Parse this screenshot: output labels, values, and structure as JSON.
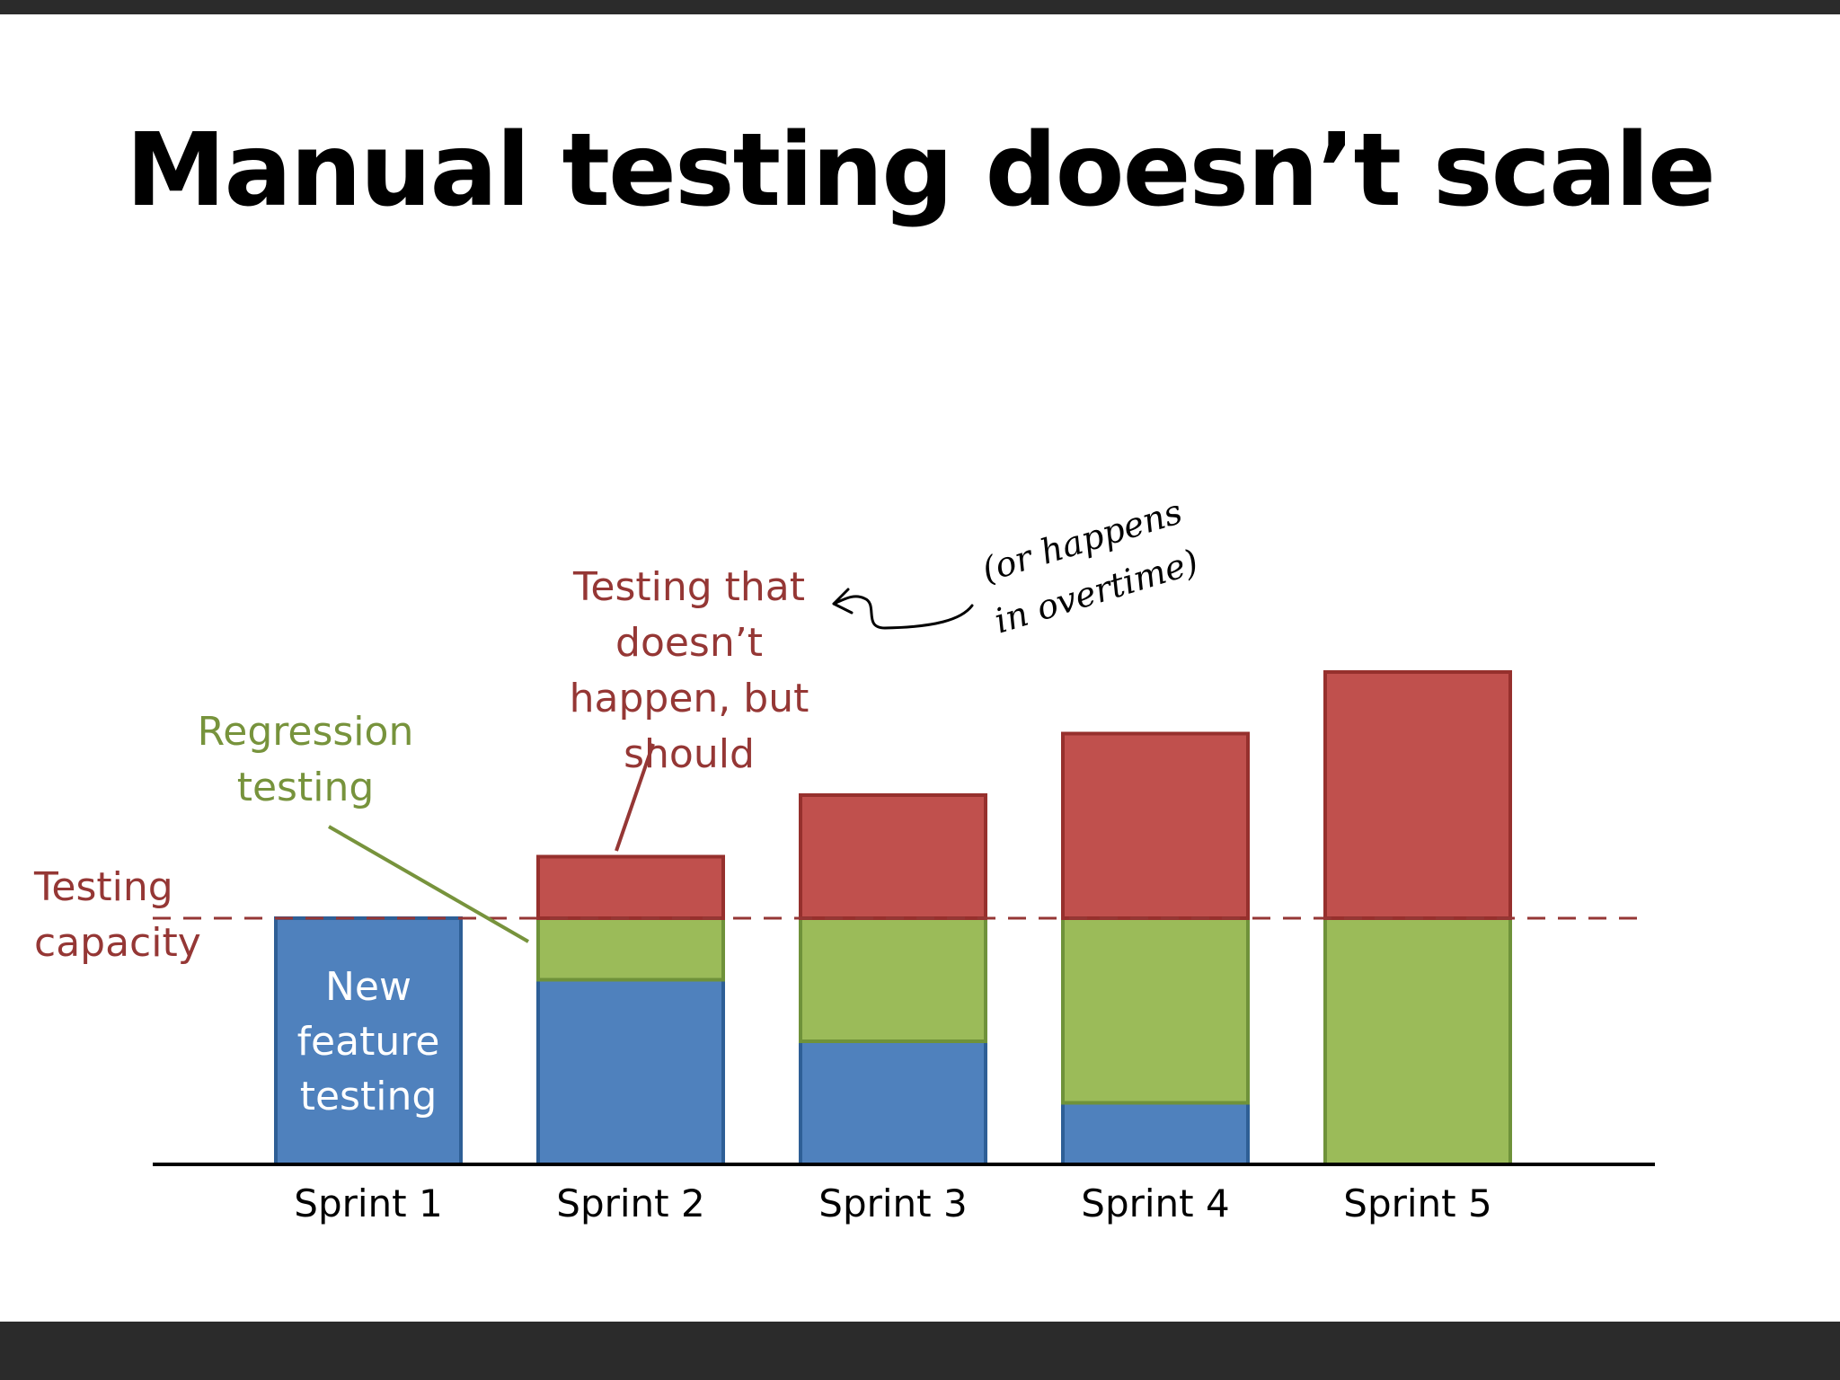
{
  "slide": {
    "title": "Manual testing doesn’t scale"
  },
  "chart_data": {
    "type": "bar",
    "stacked": true,
    "title": "Manual testing doesn’t scale",
    "categories": [
      "Sprint 1",
      "Sprint 2",
      "Sprint 3",
      "Sprint 4",
      "Sprint 5"
    ],
    "series": [
      {
        "name": "New feature testing",
        "color": "#4f81bd",
        "stroke": "#2e5f96",
        "values": [
          4,
          3,
          2,
          1,
          0
        ]
      },
      {
        "name": "Regression testing",
        "color": "#9bbb59",
        "stroke": "#6f923a",
        "values": [
          0,
          1,
          2,
          3,
          4
        ]
      },
      {
        "name": "Testing that doesn’t happen, but should",
        "color": "#c0504d",
        "stroke": "#96302d",
        "values": [
          0,
          1,
          2,
          3,
          4
        ]
      }
    ],
    "capacity": 4,
    "ylim": [
      0,
      8
    ],
    "grid": false,
    "xlabel": "",
    "ylabel": "",
    "annotations": {
      "bar_label_lines": [
        "New",
        "feature",
        "testing"
      ],
      "regression_lines": [
        "Regression",
        "testing"
      ],
      "unhappened_lines": [
        "Testing that",
        "doesn’t",
        "happen, but",
        "should"
      ],
      "capacity_lines": [
        "Testing",
        "capacity"
      ],
      "handwritten_lines": [
        "(or happens",
        "in overtime)"
      ],
      "regression_color": "#77933c",
      "unhappened_color": "#953735",
      "bar_label_color": "#ffffff"
    }
  }
}
